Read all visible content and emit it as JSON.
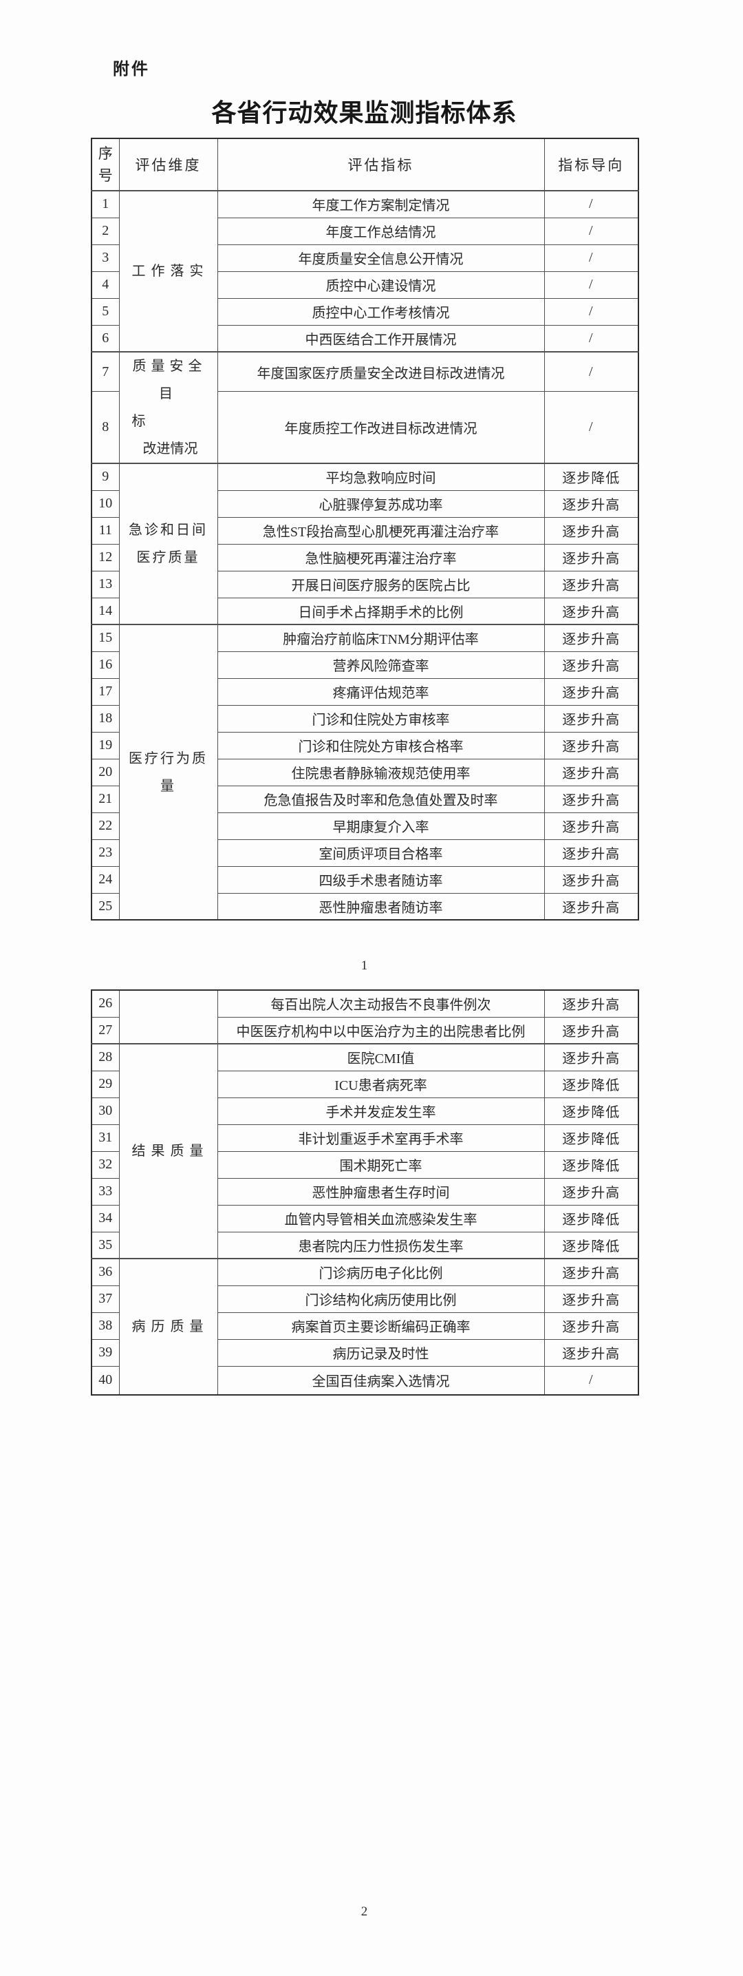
{
  "attachment_label": "附件",
  "title": "各省行动效果监测指标体系",
  "colors": {
    "text": "#262626",
    "border": "#4f4f4f"
  },
  "header": {
    "num_lines": [
      "序",
      "号"
    ],
    "dimension": "评估维度",
    "indicator": "评估指标",
    "direction": "指标导向"
  },
  "page_numbers": [
    "1",
    "2"
  ],
  "tables": [
    {
      "id": "table1",
      "rows": [
        {
          "num": "1",
          "dim": {
            "lines": [
              "工作落实"
            ],
            "span": 6
          },
          "indicator": "年度工作方案制定情况",
          "direction": "/"
        },
        {
          "num": "2",
          "indicator": "年度工作总结情况",
          "direction": "/"
        },
        {
          "num": "3",
          "indicator": "年度质量安全信息公开情况",
          "direction": "/"
        },
        {
          "num": "4",
          "indicator": "质控中心建设情况",
          "direction": "/"
        },
        {
          "num": "5",
          "indicator": "质控中心工作考核情况",
          "direction": "/"
        },
        {
          "num": "6",
          "indicator": "中西医结合工作开展情况",
          "direction": "/"
        },
        {
          "num": "7",
          "dim": {
            "lines": [
              "质量安全目",
              "标",
              "改进情况"
            ],
            "span": 2
          },
          "indicator": "年度国家医疗质量安全改进目标改进情况",
          "direction": "/"
        },
        {
          "num": "8",
          "indicator": "年度质控工作改进目标改进情况",
          "direction": "/"
        },
        {
          "num": "9",
          "dim": {
            "lines": [
              "急诊和日间",
              "医疗质量"
            ],
            "span": 6
          },
          "indicator": "平均急救响应时间",
          "direction": "逐步降低"
        },
        {
          "num": "10",
          "indicator": "心脏骤停复苏成功率",
          "direction": "逐步升高"
        },
        {
          "num": "11",
          "indicator": "急性ST段抬高型心肌梗死再灌注治疗率",
          "direction": "逐步升高"
        },
        {
          "num": "12",
          "indicator": "急性脑梗死再灌注治疗率",
          "direction": "逐步升高"
        },
        {
          "num": "13",
          "indicator": "开展日间医疗服务的医院占比",
          "direction": "逐步升高"
        },
        {
          "num": "14",
          "indicator": "日间手术占择期手术的比例",
          "direction": "逐步升高"
        },
        {
          "num": "15",
          "dim": {
            "lines": [
              "医疗行为质",
              "量"
            ],
            "span": 11
          },
          "indicator": "肿瘤治疗前临床TNM分期评估率",
          "direction": "逐步升高"
        },
        {
          "num": "16",
          "indicator": "营养风险筛查率",
          "direction": "逐步升高"
        },
        {
          "num": "17",
          "indicator": "疼痛评估规范率",
          "direction": "逐步升高"
        },
        {
          "num": "18",
          "indicator": "门诊和住院处方审核率",
          "direction": "逐步升高"
        },
        {
          "num": "19",
          "indicator": "门诊和住院处方审核合格率",
          "direction": "逐步升高"
        },
        {
          "num": "20",
          "indicator": "住院患者静脉输液规范使用率",
          "direction": "逐步升高"
        },
        {
          "num": "21",
          "indicator": "危急值报告及时率和危急值处置及时率",
          "direction": "逐步升高"
        },
        {
          "num": "22",
          "indicator": "早期康复介入率",
          "direction": "逐步升高"
        },
        {
          "num": "23",
          "indicator": "室间质评项目合格率",
          "direction": "逐步升高"
        },
        {
          "num": "24",
          "indicator": "四级手术患者随访率",
          "direction": "逐步升高"
        },
        {
          "num": "25",
          "indicator": "恶性肿瘤患者随访率",
          "direction": "逐步升高"
        }
      ]
    },
    {
      "id": "table2",
      "rows": [
        {
          "num": "26",
          "dim": {
            "lines": [],
            "span": 2
          },
          "indicator": "每百出院人次主动报告不良事件例次",
          "direction": "逐步升高"
        },
        {
          "num": "27",
          "indicator": "中医医疗机构中以中医治疗为主的出院患者比例",
          "direction": "逐步升高"
        },
        {
          "num": "28",
          "dim": {
            "lines": [
              "结果质量"
            ],
            "span": 8
          },
          "indicator": "医院CMI值",
          "direction": "逐步升高"
        },
        {
          "num": "29",
          "indicator": "ICU患者病死率",
          "direction": "逐步降低"
        },
        {
          "num": "30",
          "indicator": "手术并发症发生率",
          "direction": "逐步降低"
        },
        {
          "num": "31",
          "indicator": "非计划重返手术室再手术率",
          "direction": "逐步降低"
        },
        {
          "num": "32",
          "indicator": "围术期死亡率",
          "direction": "逐步降低"
        },
        {
          "num": "33",
          "indicator": "恶性肿瘤患者生存时间",
          "direction": "逐步升高"
        },
        {
          "num": "34",
          "indicator": "血管内导管相关血流感染发生率",
          "direction": "逐步降低"
        },
        {
          "num": "35",
          "indicator": "患者院内压力性损伤发生率",
          "direction": "逐步降低"
        },
        {
          "num": "36",
          "dim": {
            "lines": [
              "病历质量"
            ],
            "span": 5
          },
          "indicator": "门诊病历电子化比例",
          "direction": "逐步升高"
        },
        {
          "num": "37",
          "indicator": "门诊结构化病历使用比例",
          "direction": "逐步升高"
        },
        {
          "num": "38",
          "indicator": "病案首页主要诊断编码正确率",
          "direction": "逐步升高"
        },
        {
          "num": "39",
          "indicator": "病历记录及时性",
          "direction": "逐步升高"
        },
        {
          "num": "40",
          "indicator": "全国百佳病案入选情况",
          "direction": "/"
        }
      ]
    }
  ]
}
